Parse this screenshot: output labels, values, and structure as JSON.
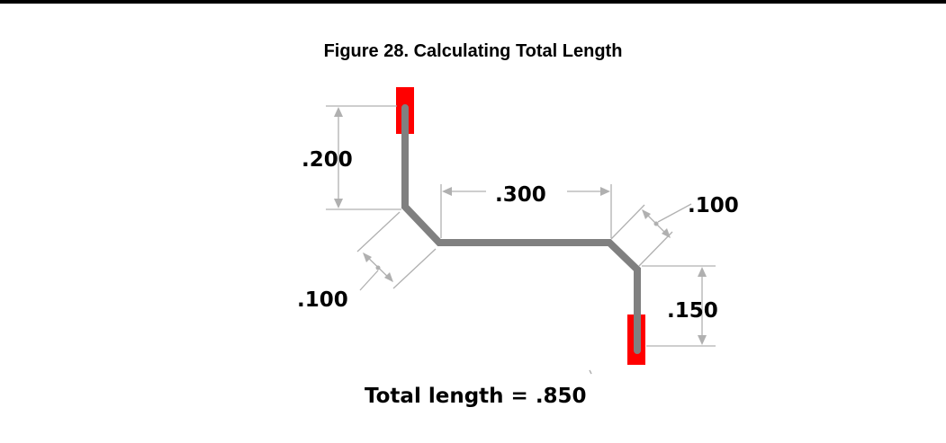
{
  "figure": {
    "caption": "Figure 28. Calculating Total Length",
    "segments": [
      {
        "name": "left-vertical",
        "label": ".200"
      },
      {
        "name": "left-diagonal",
        "label": ".100"
      },
      {
        "name": "horizontal",
        "label": ".300"
      },
      {
        "name": "right-diagonal",
        "label": ".100"
      },
      {
        "name": "right-vertical",
        "label": ".150"
      }
    ],
    "total": "Total length = .850",
    "colors": {
      "trace": "#808080",
      "pad": "#ff0000",
      "dimension": "#b0b0b0"
    }
  }
}
